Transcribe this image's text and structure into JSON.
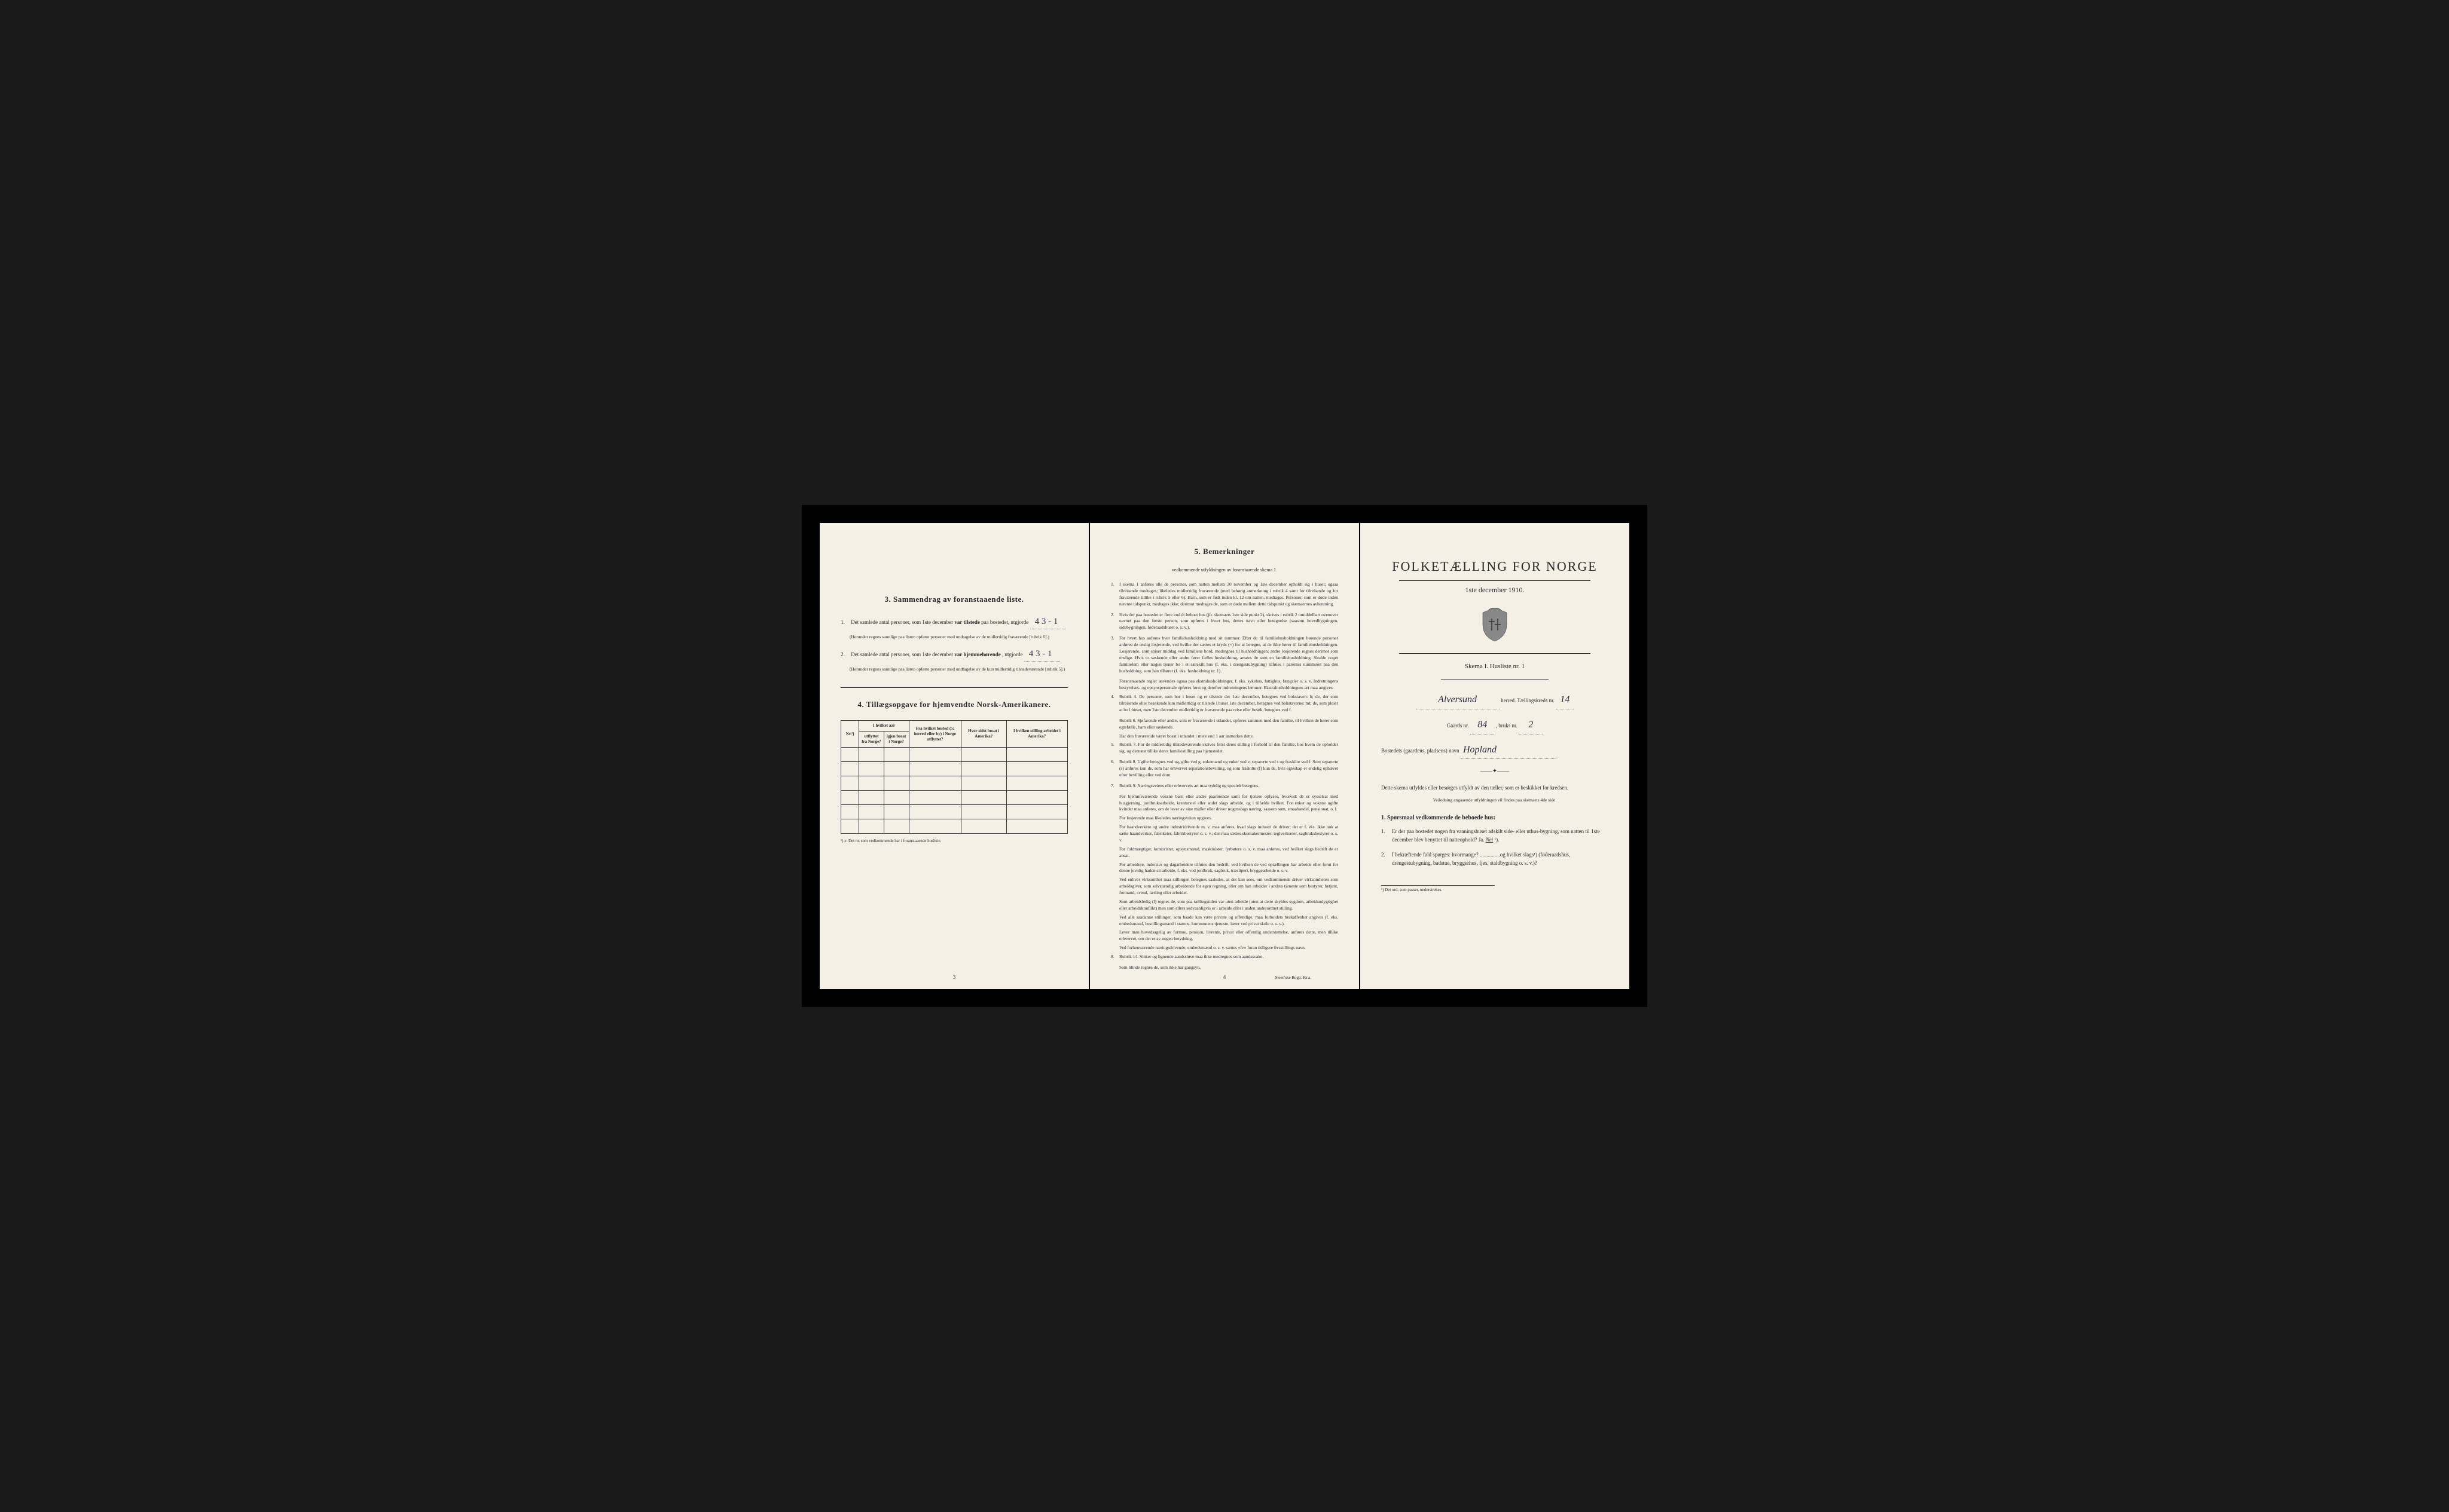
{
  "page1": {
    "section3": {
      "title": "3.   Sammendrag av foranstaaende liste.",
      "items": [
        {
          "num": "1.",
          "text_before": "Det samlede antal personer, som 1ste december",
          "text_bold": "var tilstede",
          "text_after": "paa bostedet, utgjorde",
          "value": "4   3 - 1",
          "note": "(Herunder regnes samtlige paa listen opførte personer med undtagelse av de midlertidig fraværende [rubrik 6].)"
        },
        {
          "num": "2.",
          "text_before": "Det samlede antal personer, som 1ste december",
          "text_bold": "var hjemmehørende",
          "text_after": ", utgjorde",
          "value": "4   3 - 1",
          "note": "(Herunder regnes samtlige paa listen opførte personer med undtagelse av de kun midlertidig tilstedeværende [rubrik 5].)"
        }
      ]
    },
    "section4": {
      "title": "4.   Tillægsopgave for hjemvendte Norsk-Amerikanere.",
      "headers": [
        "Nr.¹)",
        "I hvilket aar utflyttet fra Norge?",
        "I hvilket aar igjen bosat i Norge?",
        "Fra hvilket bosted (ɔ: herred eller by) i Norge utflyttet?",
        "Hvor sidst bosat i Amerika?",
        "I hvilken stilling arbeidet i Amerika?"
      ],
      "footnote": "¹) ɔ: Det nr. som vedkommende har i foranstaaende husliste.",
      "empty_rows": 6
    },
    "page_num": "3"
  },
  "page2": {
    "title": "5.   Bemerkninger",
    "subtitle": "vedkommende utfyldningen av foranstaaende skema 1.",
    "items": [
      {
        "n": "1.",
        "text": "I skema 1 anføres alle de personer, som natten mellem 30 november og 1ste december opholdt sig i huset; ogsaa tilreisende medtages; likeledes midlertidig fraværende (med behørig anmerkning i rubrik 4 samt for tilreisende og for fraværende tillike i rubrik 5 eller 6). Barn, som er født inden kl. 12 om natten, medtages. Personer, som er døde inden nævnte tidspunkt, medtages ikke; derimot medtages de, som er døde mellem dette tidspunkt og skemaernes avhentning."
      },
      {
        "n": "2.",
        "text": "Hvis der paa bostedet er flere end ét beboet hus (jfr. skemaets 1ste side punkt 2), skrives i rubrik 2 umiddelbart ovenover navnet paa den første person, som opføres i hvert hus, dettes navn eller betegnelse (saasom hovedbygningen, sidebygningen, føderaadshuset o. s. v.)."
      },
      {
        "n": "3.",
        "text": "For hvert hus anføres hver familiehusholdning med sit nummer. Efter de til familiehusholdningen hørende personer anføres de enslig losjerende, ved hvilke der sættes et kryds (×) for at betegne, at de ikke hører til familiehusholdningen. Losjerende, som spiser middag ved familiens bord, medregnes til husholdningen; andre losjerende regnes derimot som enslige. Hvis to søskende eller andre fører fælles husholdning, ansees de som en familiehusholdning. Skulde noget familielem eller nogen tjener bo i et særskilt hus (f. eks. i drengestubygning) tilføies i parentes nummeret paa den husholdning, som han tilhører (f. eks. husholdning nr. 1)."
      },
      {
        "n": "",
        "text": "Foranstaaende regler anvendes ogsaa paa ekstrahusholdninger, f. eks. sykehus, fattighus, fængsler o. s. v. Indretningens bestyrelses- og opsynspersonale opføres først og derefter indretningens lemmer. Ekstrahusholdningens art maa angives."
      },
      {
        "n": "4.",
        "text": "Rubrik 4. De personer, som bor i huset og er tilstede der 1ste december, betegnes ved bokstaven: b; de, der som tilreisende eller besøkende kun midlertidig er tilstede i huset 1ste december, betegnes ved bokstaverne: mt; de, som pleier at bo i huset, men 1ste december midlertidig er fraværende paa reise eller besøk, betegnes ved f."
      },
      {
        "n": "",
        "text": "Rubrik 6. Sjøfarende eller andre, som er fraværende i utlandet, opføres sammen med den familie, til hvilken de hører som egtefælle, barn eller søskende."
      },
      {
        "n": "",
        "text": "Har den fraværende været bosat i utlandet i mere end 1 aar anmerkes dette."
      },
      {
        "n": "5.",
        "text": "Rubrik 7. For de midlertidig tilstedeværende skrives først deres stilling i forhold til den familie, hos hvem de opholder sig, og dernæst tillike deres familiestilling paa hjemstedet."
      },
      {
        "n": "6.",
        "text": "Rubrik 8. Ugifte betegnes ved ug, gifte ved g, enkemænd og enker ved e, separerte ved s og fraskilte ved f. Som separerte (s) anføres kun de, som har erhvervet separationsbevilling, og som fraskilte (f) kun de, hvis egteskap er endelig ophævet efter bevilling eller ved dom."
      },
      {
        "n": "7.",
        "text": "Rubrik 9. Næringsveiens eller erhvervets art maa tydelig og specielt betegnes."
      },
      {
        "n": "",
        "text": "For hjemmeværende voksne barn eller andre paarørende samt for tjenere oplyses, hvorvidt de er sysselsat med husgjerning, jordbruksarbeide, kreaturstel eller andet slags arbeide, og i tilfælde hvilket. For enker og voksne ugifte kvinder maa anføres, om de lever av sine midler eller driver nogenslags næring, saasom søm, smaahandel, pensionat, o. l."
      },
      {
        "n": "",
        "text": "For losjerende maa likeledes næringsveien opgives."
      },
      {
        "n": "",
        "text": "For haandverkere og andre industridrivende m. v. maa anføres, hvad slags industri de driver; det er f. eks. ikke nok at sætte haandverker, fabrikeier, fabrikbestyrer o. s. v.; der maa sættes skomakermester, teglverkseier, sagbruksbestyrer o. s. v."
      },
      {
        "n": "",
        "text": "For fuldmægtiger, kontorister, opsynsmænd, maskinister, fyrbøtere o. s. v. maa anføres, ved hvilket slags bedrift de er ansat."
      },
      {
        "n": "",
        "text": "For arbeidere, inderster og dagarbeidere tilføies den bedrift, ved hvilken de ved optællingen har arbeide eller forut for denne jevnlig hadde sit arbeide, f. eks. ved jordbruk, sagbruk, træsliperi, bryggearbeide o. s. v."
      },
      {
        "n": "",
        "text": "Ved enhver virksomhet maa stillingen betegnes saaledes, at det kan sees, om vedkommende driver virksomheten som arbeidsgiver, som selvstændig arbeidende for egen regning, eller om han arbeider i andres tjeneste som bestyrer, betjent, formand, svend, lærling eller arbeider."
      },
      {
        "n": "",
        "text": "Som arbeidsledig (l) regnes de, som paa tællingstiden var uten arbeide (uten at dette skyldes sygdom, arbeidsudygtighet eller arbeidskonflikt) men som ellers sedvaanligvis er i arbeide eller i anden underordnet stilling."
      },
      {
        "n": "",
        "text": "Ved alle saadanne stillinger, som baade kan være private og offentlige, maa forholdets beskaffenhet angives (f. eks. embedsmand, bestillingsmand i statens, kommunens tjeneste, lærer ved privat skole o. s. v.)."
      },
      {
        "n": "",
        "text": "Lever man hovedsagelig av formue, pension, livrente, privat eller offentlig understøttelse, anføres dette, men tillike erhvervet, om det er av nogen betydning."
      },
      {
        "n": "",
        "text": "Ved forhenværende næringsdrivende, embedsmænd o. s. v. sættes «fv» foran tidligere livsstillings navn."
      },
      {
        "n": "8.",
        "text": "Rubrik 14. Sinker og lignende aandssløve maa ikke medregnes som aandssvake."
      },
      {
        "n": "",
        "text": "Som blinde regnes de, som ikke har gangsyn."
      }
    ],
    "page_num": "4",
    "printer": "Steen'ske Bogtr. Kr.a."
  },
  "page3": {
    "main_title": "FOLKETÆLLING FOR NORGE",
    "subtitle": "1ste december 1910.",
    "skema": "Skema I.   Husliste nr.",
    "skema_value": "1",
    "herred_value": "Alversund",
    "herred_label": "herred.  Tællingskreds nr.",
    "kreds_value": "14",
    "gaards_label": "Gaards nr.",
    "gaards_value": "84",
    "bruks_label": ", bruks nr.",
    "bruks_value": "2",
    "bosted_label": "Bostedets (gaardens, pladsens) navn",
    "bosted_value": "Hopland",
    "instruction": "Dette skema utfyldes eller besørges utfyldt av den tæller, som er beskikket for kredsen.",
    "instruction_small": "Veiledning angaaende utfyldningen vil findes paa skemaets 4de side.",
    "q_title": "1. Spørsmaal vedkommende de beboede hus:",
    "questions": [
      {
        "n": "1.",
        "text": "Er der paa bostedet nogen fra vaaningshuset adskilt side- eller uthus-bygning, som natten til 1ste december blev benyttet til natteophold?   Ja.   ",
        "answer": "Nei",
        "suffix": "¹)."
      },
      {
        "n": "2.",
        "text": "I bekræftende fald spørges: hvormange? ...............og hvilket slags¹) (føderaadshus, drengestubygning, badstue, bryggerhus, fjøs, staldbygning o. s. v.)?"
      }
    ],
    "footnote": "¹) Det ord, som passer, understrekes."
  }
}
